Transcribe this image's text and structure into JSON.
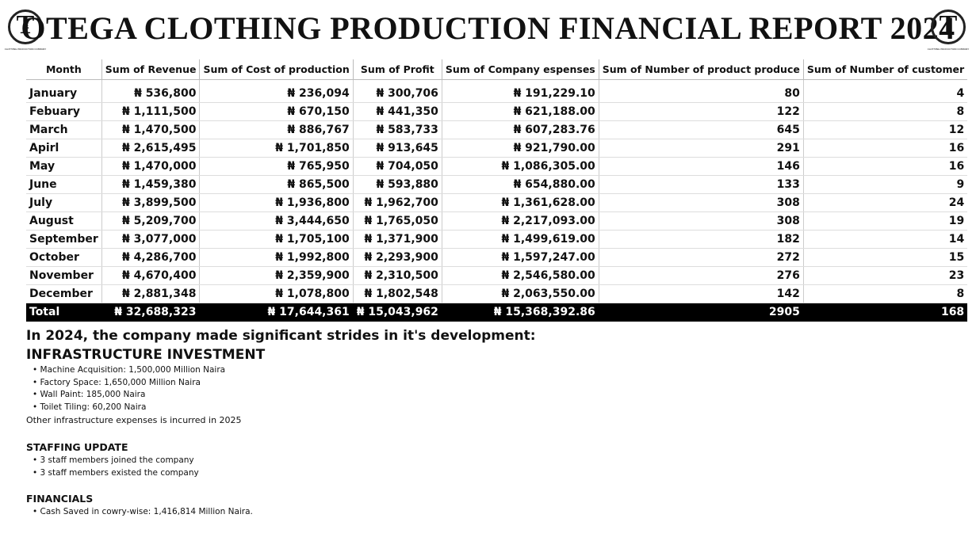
{
  "header": {
    "title": "OTEGA CLOTHING PRODUCTION FINANCIAL REPORT 2024",
    "logo": {
      "initial": "T",
      "letters": "EGA",
      "caption": "CLOTHING PRODUCTION COMPANY"
    }
  },
  "table": {
    "columns": [
      "Month",
      "Sum of Revenue",
      "Sum of Cost of production",
      "Sum of Profit",
      "Sum of Company espenses",
      "Sum of Number of product produce",
      "Sum of Number of customer"
    ],
    "rows": [
      [
        "January",
        "₦ 536,800",
        "₦ 236,094",
        "₦ 300,706",
        "₦ 191,229.10",
        "80",
        "4"
      ],
      [
        "Febuary",
        "₦ 1,111,500",
        "₦ 670,150",
        "₦ 441,350",
        "₦ 621,188.00",
        "122",
        "8"
      ],
      [
        "March",
        "₦ 1,470,500",
        "₦ 886,767",
        "₦ 583,733",
        "₦ 607,283.76",
        "645",
        "12"
      ],
      [
        "Apirl",
        "₦ 2,615,495",
        "₦ 1,701,850",
        "₦ 913,645",
        "₦ 921,790.00",
        "291",
        "16"
      ],
      [
        "May",
        "₦ 1,470,000",
        "₦ 765,950",
        "₦ 704,050",
        "₦ 1,086,305.00",
        "146",
        "16"
      ],
      [
        "June",
        "₦ 1,459,380",
        "₦ 865,500",
        "₦ 593,880",
        "₦ 654,880.00",
        "133",
        "9"
      ],
      [
        "July",
        "₦ 3,899,500",
        "₦ 1,936,800",
        "₦ 1,962,700",
        "₦ 1,361,628.00",
        "308",
        "24"
      ],
      [
        "August",
        "₦ 5,209,700",
        "₦ 3,444,650",
        "₦ 1,765,050",
        "₦ 2,217,093.00",
        "308",
        "19"
      ],
      [
        "September",
        "₦ 3,077,000",
        "₦ 1,705,100",
        "₦ 1,371,900",
        "₦ 1,499,619.00",
        "182",
        "14"
      ],
      [
        "October",
        "₦ 4,286,700",
        "₦ 1,992,800",
        "₦ 2,293,900",
        "₦ 1,597,247.00",
        "272",
        "15"
      ],
      [
        "November",
        "₦ 4,670,400",
        "₦ 2,359,900",
        "₦ 2,310,500",
        "₦ 2,546,580.00",
        "276",
        "23"
      ],
      [
        "December",
        "₦ 2,881,348",
        "₦ 1,078,800",
        "₦ 1,802,548",
        "₦ 2,063,550.00",
        "142",
        "8"
      ]
    ],
    "total": [
      "Total",
      "₦ 32,688,323",
      "₦ 17,644,361",
      "₦ 15,043,962",
      "₦ 15,368,392.86",
      "2905",
      "168"
    ]
  },
  "summary": {
    "heading": "In 2024, the company made significant strides in it's development:",
    "sections": [
      {
        "title": "INFRASTRUCTURE INVESTMENT",
        "items": [
          "Machine Acquisition: 1,500,000 Million Naira",
          "Factory Space: 1,650,000 Million Naira",
          "Wall Paint: 185,000 Naira",
          "Toilet Tiling: 60,200 Naira"
        ],
        "note": "Other infrastructure expenses is incurred in 2025"
      },
      {
        "title": "STAFFING UPDATE",
        "items": [
          "3 staff members joined the company",
          "3 staff members existed the company"
        ]
      },
      {
        "title": "FINANCIALS",
        "items": [
          "Cash Saved in cowry-wise: 1,416,814 Million Naira."
        ]
      }
    ]
  }
}
